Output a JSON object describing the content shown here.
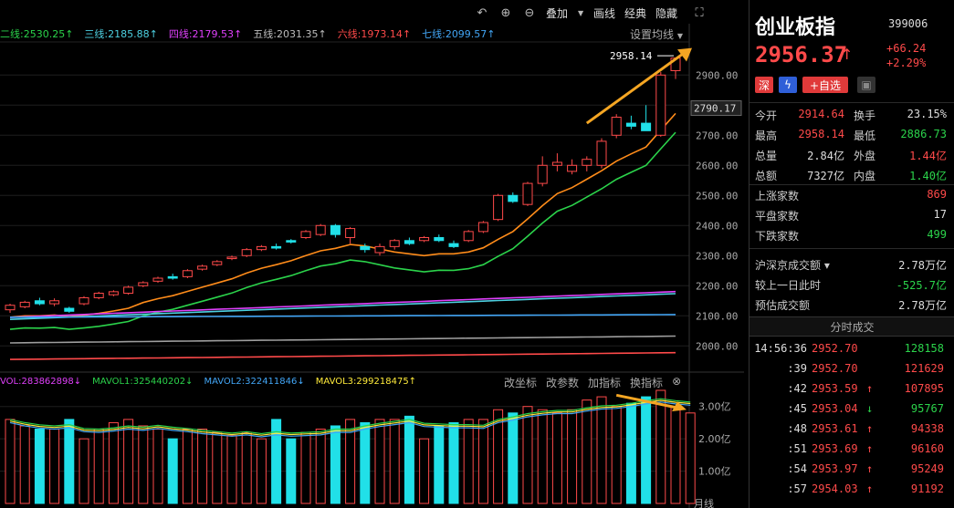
{
  "toolbar": {
    "overlay": "叠加",
    "draw": "画线",
    "classic": "经典",
    "hide": "隐藏"
  },
  "ma_legend": [
    {
      "label": "二线:2530.25↑",
      "color": "#2bd34b"
    },
    {
      "label": "三线:2185.88↑",
      "color": "#4dd0e1"
    },
    {
      "label": "四线:2179.53↑",
      "color": "#e040fb"
    },
    {
      "label": "五线:2031.35↑",
      "color": "#bdbdbd"
    },
    {
      "label": "六线:1973.14↑",
      "color": "#ff4a4a"
    },
    {
      "label": "七线:2099.57↑",
      "color": "#42a5f5"
    }
  ],
  "set_ma": "设置均线",
  "price_axis": {
    "ticks": [
      "2900.00",
      "2800.00",
      "2700.00",
      "2600.00",
      "2500.00",
      "2400.00",
      "2300.00",
      "2200.00",
      "2100.00",
      "2000.00"
    ],
    "current": "2790.17",
    "high_label": "2958.14"
  },
  "vol_legend": [
    {
      "label": "VOL:283862898↓",
      "color": "#e040fb"
    },
    {
      "label": "MAVOL1:325440202↓",
      "color": "#2bd34b"
    },
    {
      "label": "MAVOL2:322411846↓",
      "color": "#42a5f5"
    },
    {
      "label": "MAVOL3:299218475↑",
      "color": "#ffeb3b"
    }
  ],
  "vol_buttons": [
    "改坐标",
    "改参数",
    "加指标",
    "换指标"
  ],
  "vol_axis": [
    "3.00亿",
    "2.00亿",
    "1.00亿"
  ],
  "bottom_axis": {
    "tail": "月线"
  },
  "chart_data": {
    "type": "candlestick",
    "y_range": [
      1925,
      3010
    ],
    "candles": [
      {
        "o": 2120,
        "c": 2135,
        "h": 2140,
        "l": 2110
      },
      {
        "o": 2130,
        "c": 2145,
        "h": 2150,
        "l": 2125
      },
      {
        "o": 2150,
        "c": 2140,
        "h": 2160,
        "l": 2135
      },
      {
        "o": 2140,
        "c": 2150,
        "h": 2158,
        "l": 2132
      },
      {
        "o": 2125,
        "c": 2115,
        "h": 2130,
        "l": 2110
      },
      {
        "o": 2140,
        "c": 2160,
        "h": 2165,
        "l": 2135
      },
      {
        "o": 2160,
        "c": 2175,
        "h": 2180,
        "l": 2155
      },
      {
        "o": 2170,
        "c": 2180,
        "h": 2185,
        "l": 2165
      },
      {
        "o": 2175,
        "c": 2195,
        "h": 2200,
        "l": 2170
      },
      {
        "o": 2200,
        "c": 2210,
        "h": 2215,
        "l": 2195
      },
      {
        "o": 2215,
        "c": 2225,
        "h": 2230,
        "l": 2210
      },
      {
        "o": 2230,
        "c": 2225,
        "h": 2240,
        "l": 2220
      },
      {
        "o": 2230,
        "c": 2250,
        "h": 2255,
        "l": 2225
      },
      {
        "o": 2255,
        "c": 2265,
        "h": 2270,
        "l": 2250
      },
      {
        "o": 2270,
        "c": 2280,
        "h": 2285,
        "l": 2265
      },
      {
        "o": 2290,
        "c": 2295,
        "h": 2300,
        "l": 2285
      },
      {
        "o": 2300,
        "c": 2320,
        "h": 2325,
        "l": 2295
      },
      {
        "o": 2320,
        "c": 2330,
        "h": 2335,
        "l": 2315
      },
      {
        "o": 2330,
        "c": 2325,
        "h": 2340,
        "l": 2320
      },
      {
        "o": 2350,
        "c": 2345,
        "h": 2355,
        "l": 2340
      },
      {
        "o": 2360,
        "c": 2380,
        "h": 2385,
        "l": 2355
      },
      {
        "o": 2370,
        "c": 2400,
        "h": 2405,
        "l": 2365
      },
      {
        "o": 2400,
        "c": 2370,
        "h": 2405,
        "l": 2360
      },
      {
        "o": 2360,
        "c": 2390,
        "h": 2395,
        "l": 2340
      },
      {
        "o": 2330,
        "c": 2320,
        "h": 2340,
        "l": 2310
      },
      {
        "o": 2310,
        "c": 2330,
        "h": 2340,
        "l": 2300
      },
      {
        "o": 2330,
        "c": 2350,
        "h": 2355,
        "l": 2320
      },
      {
        "o": 2350,
        "c": 2340,
        "h": 2360,
        "l": 2335
      },
      {
        "o": 2350,
        "c": 2360,
        "h": 2365,
        "l": 2345
      },
      {
        "o": 2360,
        "c": 2350,
        "h": 2370,
        "l": 2345
      },
      {
        "o": 2340,
        "c": 2330,
        "h": 2350,
        "l": 2325
      },
      {
        "o": 2350,
        "c": 2380,
        "h": 2385,
        "l": 2345
      },
      {
        "o": 2380,
        "c": 2410,
        "h": 2415,
        "l": 2375
      },
      {
        "o": 2420,
        "c": 2500,
        "h": 2505,
        "l": 2415
      },
      {
        "o": 2500,
        "c": 2480,
        "h": 2510,
        "l": 2475
      },
      {
        "o": 2470,
        "c": 2540,
        "h": 2545,
        "l": 2465
      },
      {
        "o": 2540,
        "c": 2600,
        "h": 2630,
        "l": 2530
      },
      {
        "o": 2600,
        "c": 2610,
        "h": 2640,
        "l": 2580
      },
      {
        "o": 2580,
        "c": 2600,
        "h": 2620,
        "l": 2570
      },
      {
        "o": 2600,
        "c": 2620,
        "h": 2630,
        "l": 2580
      },
      {
        "o": 2600,
        "c": 2680,
        "h": 2690,
        "l": 2590
      },
      {
        "o": 2700,
        "c": 2760,
        "h": 2770,
        "l": 2690
      },
      {
        "o": 2740,
        "c": 2730,
        "h": 2765,
        "l": 2720
      },
      {
        "o": 2740,
        "c": 2715,
        "h": 2800,
        "l": 2715
      },
      {
        "o": 2700,
        "c": 2900,
        "h": 2910,
        "l": 2695
      },
      {
        "o": 2914.64,
        "c": 2956.37,
        "h": 2958.14,
        "l": 2886.73
      }
    ],
    "volume_range": [
      0,
      3.5
    ],
    "volumes": [
      2.6,
      2.4,
      2.3,
      2.3,
      2.6,
      2.0,
      2.3,
      2.5,
      2.6,
      2.4,
      2.3,
      2.0,
      2.3,
      2.3,
      2.2,
      2.1,
      2.2,
      2.0,
      2.6,
      2.0,
      2.2,
      2.3,
      2.4,
      2.6,
      2.5,
      2.6,
      2.6,
      2.7,
      2.0,
      2.4,
      2.5,
      2.6,
      2.6,
      2.9,
      2.8,
      3.0,
      2.9,
      2.8,
      2.9,
      3.2,
      3.3,
      3.0,
      3.1,
      3.3,
      3.5,
      3.0,
      2.8
    ]
  },
  "sidebar": {
    "name": "创业板指",
    "code": "399006",
    "price": "2956.37",
    "arrow": "↑",
    "change": "+66.24",
    "change_pct": "+2.29%",
    "tags": [
      "深",
      "+自选"
    ],
    "quote_rows": [
      {
        "k1": "今开",
        "v1": "2914.64",
        "c1": "red",
        "k2": "换手",
        "v2": "23.15%",
        "c2": "white"
      },
      {
        "k1": "最高",
        "v1": "2958.14",
        "c1": "red",
        "k2": "最低",
        "v2": "2886.73",
        "c2": "green"
      },
      {
        "k1": "总量",
        "v1": "2.84亿",
        "c1": "white",
        "k2": "外盘",
        "v2": "1.44亿",
        "c2": "red"
      },
      {
        "k1": "总额",
        "v1": "7327亿",
        "c1": "white",
        "k2": "内盘",
        "v2": "1.40亿",
        "c2": "green"
      }
    ],
    "breadth": [
      {
        "k": "上涨家数",
        "v": "869",
        "c": "red"
      },
      {
        "k": "平盘家数",
        "v": "17",
        "c": "white"
      },
      {
        "k": "下跌家数",
        "v": "499",
        "c": "green"
      }
    ],
    "turnover": [
      {
        "k": "沪深京成交额 ▾",
        "v": "2.78万亿",
        "c": "white"
      },
      {
        "k": "较上一日此时",
        "v": "-525.7亿",
        "c": "green"
      },
      {
        "k": "预估成交额",
        "v": "2.78万亿",
        "c": "white"
      }
    ],
    "trades_title": "分时成交",
    "trades": [
      {
        "t": "14:56:36",
        "p": "2952.70",
        "a": "",
        "ac": "white",
        "v": "128158",
        "vc": "green"
      },
      {
        "t": ":39",
        "p": "2952.70",
        "a": "",
        "ac": "white",
        "v": "121629",
        "vc": "red"
      },
      {
        "t": ":42",
        "p": "2953.59",
        "a": "↑",
        "ac": "red",
        "v": "107895",
        "vc": "red"
      },
      {
        "t": ":45",
        "p": "2953.04",
        "a": "↓",
        "ac": "green",
        "v": "95767",
        "vc": "green"
      },
      {
        "t": ":48",
        "p": "2953.61",
        "a": "↑",
        "ac": "red",
        "v": "94338",
        "vc": "red"
      },
      {
        "t": ":51",
        "p": "2953.69",
        "a": "↑",
        "ac": "red",
        "v": "96160",
        "vc": "red"
      },
      {
        "t": ":54",
        "p": "2953.97",
        "a": "↑",
        "ac": "red",
        "v": "95249",
        "vc": "red"
      },
      {
        "t": ":57",
        "p": "2954.03",
        "a": "↑",
        "ac": "red",
        "v": "91192",
        "vc": "red"
      }
    ]
  }
}
